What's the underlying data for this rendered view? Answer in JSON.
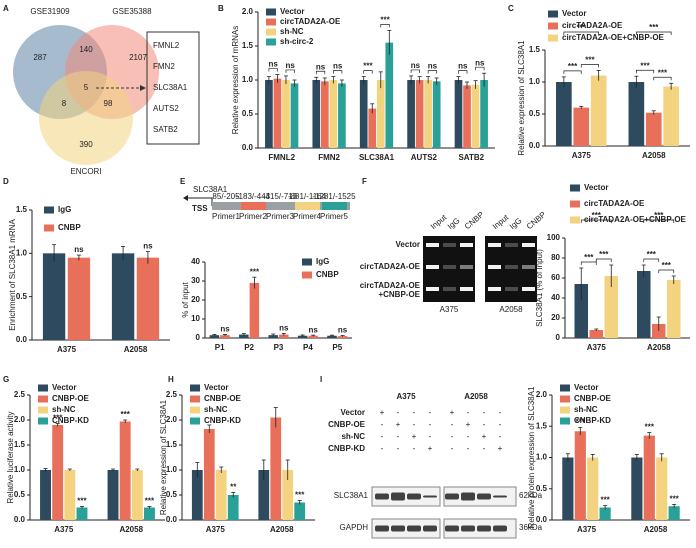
{
  "panel_labels": [
    "A",
    "B",
    "C",
    "D",
    "E",
    "F",
    "G",
    "H",
    "I"
  ],
  "venn": {
    "sets": [
      "GSE31909",
      "GSE35388",
      "ENCORI"
    ],
    "counts": [
      "287",
      "140",
      "2107",
      "5",
      "8",
      "98",
      "390"
    ],
    "genes": [
      "FMNL2",
      "FMN2",
      "SLC38A1",
      "AUTS2",
      "SATB2"
    ]
  },
  "promoter_diagram": {
    "gene": "SLC38A1",
    "tss": "TSS",
    "regions": [
      "85/-205",
      "-183/-443",
      "-415/-713",
      "-881/-1164",
      "-1281/-1525"
    ],
    "primers": [
      "Primer1",
      "Primer2",
      "Primer3",
      "Primer4",
      "Primer5"
    ]
  },
  "gel": {
    "lanes": [
      "Input",
      "IgG",
      "CNBP",
      "Input",
      "IgG",
      "CNBP"
    ],
    "rows": [
      [
        "Vector"
      ],
      [
        "circTADA2A-OE"
      ],
      [
        "circTADA2A-OE",
        "+CNBP-OE"
      ]
    ],
    "cells": [
      "A375",
      "A2058"
    ]
  },
  "blot": {
    "cells": [
      "A375",
      "A2058"
    ],
    "rows": [
      {
        "name": "Vector",
        "signs": [
          "+",
          "-",
          "-",
          "-",
          "+",
          "-",
          "-",
          "-"
        ]
      },
      {
        "name": "CNBP-OE",
        "signs": [
          "-",
          "+",
          "-",
          "-",
          "-",
          "+",
          "-",
          "-"
        ]
      },
      {
        "name": "sh-NC",
        "signs": [
          "-",
          "-",
          "+",
          "-",
          "-",
          "-",
          "+",
          "-"
        ]
      },
      {
        "name": "CNBP-KD",
        "signs": [
          "-",
          "-",
          "-",
          "+",
          "-",
          "-",
          "-",
          "+"
        ]
      }
    ],
    "proteins": [
      {
        "name": "SLC38A1",
        "size": "62kDa"
      },
      {
        "name": "GAPDH",
        "size": "36kDa"
      }
    ]
  },
  "chart_data": [
    {
      "type": "bar",
      "ylabel": "Relative expression of mRNAs",
      "brackets": true,
      "categories": [
        "FMNL2",
        "FMN2",
        "SLC38A1",
        "AUTS2",
        "SATB2"
      ],
      "ylim": [
        0,
        2
      ],
      "yticks": [
        {
          "value": 0,
          "label": "0.0"
        },
        {
          "value": 0.5,
          "label": "0.5"
        },
        {
          "value": 1,
          "label": "1.0"
        },
        {
          "value": 1.5,
          "label": "1.5"
        },
        {
          "value": 2,
          "label": "2.0"
        }
      ],
      "series": [
        {
          "name": "Vector",
          "color": "#2e4a5e",
          "values": [
            1.0,
            1.0,
            1.0,
            1.0,
            1.0
          ],
          "errors": [
            0.05,
            0.04,
            0.05,
            0.06,
            0.05
          ]
        },
        {
          "name": "circTADA2A-OE",
          "color": "#e8705a",
          "values": [
            1.02,
            0.98,
            0.58,
            1.0,
            0.92
          ],
          "errors": [
            0.06,
            0.05,
            0.07,
            0.05,
            0.05
          ],
          "significance": [
            "ns",
            "ns",
            "***",
            "ns",
            "ns"
          ]
        },
        {
          "name": "sh-NC",
          "color": "#f3d37f",
          "values": [
            1.0,
            1.0,
            1.0,
            1.0,
            0.93
          ],
          "errors": [
            0.06,
            0.05,
            0.12,
            0.05,
            0.06
          ]
        },
        {
          "name": "sh-circ-2",
          "color": "#2aa198",
          "values": [
            0.95,
            0.95,
            1.55,
            0.98,
            1.0
          ],
          "errors": [
            0.05,
            0.05,
            0.18,
            0.05,
            0.1
          ],
          "significance": [
            "ns",
            "ns",
            "***",
            "ns",
            "ns"
          ]
        }
      ]
    },
    {
      "type": "bar",
      "ylabel": "Relative expression of SLC38A1",
      "brackets": true,
      "categories": [
        "A375",
        "A2058"
      ],
      "ylim": [
        0,
        1.5
      ],
      "yticks": [
        {
          "value": 0,
          "label": "0.0"
        },
        {
          "value": 0.5,
          "label": "0.5"
        },
        {
          "value": 1,
          "label": "1.0"
        },
        {
          "value": 1.5,
          "label": "1.5"
        }
      ],
      "series": [
        {
          "name": "Vector",
          "color": "#2e4a5e",
          "values": [
            1.0,
            1.0
          ],
          "errors": [
            0.08,
            0.09
          ]
        },
        {
          "name": "circTADA2A-OE",
          "color": "#e8705a",
          "values": [
            0.6,
            0.52
          ],
          "errors": [
            0.02,
            0.03
          ],
          "significance": [
            "***",
            "***"
          ]
        },
        {
          "name": "circTADA2A-OE+CNBP-OE",
          "color": "#f3d37f",
          "values": [
            1.1,
            0.93
          ],
          "errors": [
            0.08,
            0.05
          ],
          "significance": [
            "***",
            "***"
          ],
          "significance_vs_control": [
            "***",
            "***"
          ]
        }
      ]
    },
    {
      "type": "bar",
      "ylabel": "Enrichment of SLC38A1 mRNA",
      "brackets": false,
      "categories": [
        "A375",
        "A2058"
      ],
      "ylim": [
        0,
        1.5
      ],
      "yticks": [
        {
          "value": 0,
          "label": "0.0"
        },
        {
          "value": 0.5,
          "label": "0.5"
        },
        {
          "value": 1,
          "label": "1.0"
        },
        {
          "value": 1.5,
          "label": "1.5"
        }
      ],
      "series": [
        {
          "name": "IgG",
          "color": "#2e4a5e",
          "values": [
            1.0,
            1.0
          ],
          "errors": [
            0.1,
            0.08
          ]
        },
        {
          "name": "CNBP",
          "color": "#e8705a",
          "values": [
            0.95,
            0.95
          ],
          "errors": [
            0.03,
            0.07
          ],
          "significance": [
            "ns",
            "ns"
          ]
        }
      ]
    },
    {
      "type": "bar",
      "ylabel": "% of input",
      "brackets": false,
      "categories": [
        "P1",
        "P2",
        "P3",
        "P4",
        "P5"
      ],
      "ylim": [
        0,
        40
      ],
      "yticks": [
        0,
        10,
        20,
        30,
        40
      ],
      "series": [
        {
          "name": "IgG",
          "color": "#2e4a5e",
          "values": [
            1.5,
            1.8,
            1.5,
            1.2,
            1.2
          ],
          "errors": [
            0.4,
            0.5,
            0.6,
            0.4,
            0.3
          ]
        },
        {
          "name": "CNBP",
          "color": "#e8705a",
          "values": [
            1.5,
            29,
            1.8,
            1.2,
            1.0
          ],
          "errors": [
            0.4,
            3,
            0.6,
            0.3,
            0.3
          ],
          "significance": [
            "ns",
            "***",
            "ns",
            "ns",
            "ns"
          ]
        }
      ]
    },
    {
      "type": "bar",
      "ylabel": "SLC38A1 (% of Input)",
      "brackets": true,
      "categories": [
        "A375",
        "A2058"
      ],
      "ylim": [
        0,
        100
      ],
      "yticks": [
        0,
        20,
        40,
        60,
        80,
        100
      ],
      "series": [
        {
          "name": "Vector",
          "color": "#2e4a5e",
          "values": [
            54,
            67
          ],
          "errors": [
            16,
            6
          ]
        },
        {
          "name": "circTADA2A-OE",
          "color": "#e8705a",
          "values": [
            8,
            14
          ],
          "errors": [
            1,
            7
          ],
          "significance": [
            "***",
            "***"
          ]
        },
        {
          "name": "circTADA2A-OE+CNBP-OE",
          "color": "#f3d37f",
          "values": [
            62,
            58
          ],
          "errors": [
            11,
            4
          ],
          "significance": [
            "***",
            "***"
          ],
          "significance_vs_control": [
            "***",
            "***"
          ]
        }
      ]
    },
    {
      "type": "bar",
      "ylabel": "Relative luciferase activity",
      "brackets": false,
      "categories": [
        "A375",
        "A2058"
      ],
      "ylim": [
        0,
        2.5
      ],
      "yticks": [
        {
          "value": 0,
          "label": "0.0"
        },
        {
          "value": 0.5,
          "label": "0.5"
        },
        {
          "value": 1,
          "label": "1.0"
        },
        {
          "value": 1.5,
          "label": "1.5"
        },
        {
          "value": 2,
          "label": "2.0"
        },
        {
          "value": 2.5,
          "label": "2.5"
        }
      ],
      "series": [
        {
          "name": "Vector",
          "color": "#2e4a5e",
          "values": [
            1.0,
            1.0
          ],
          "errors": [
            0.03,
            0.02
          ]
        },
        {
          "name": "CNBP-OE",
          "color": "#e8705a",
          "values": [
            1.9,
            1.97
          ],
          "errors": [
            0.03,
            0.03
          ],
          "significance": [
            "***",
            "***"
          ]
        },
        {
          "name": "sh-NC",
          "color": "#f3d37f",
          "values": [
            1.0,
            1.0
          ],
          "errors": [
            0.02,
            0.02
          ]
        },
        {
          "name": "CNBP-KD",
          "color": "#2aa198",
          "values": [
            0.25,
            0.25
          ],
          "errors": [
            0.02,
            0.02
          ],
          "significance": [
            "***",
            "***"
          ]
        }
      ]
    },
    {
      "type": "bar",
      "ylabel": "Relative expression of SLC38A1",
      "brackets": false,
      "categories": [
        "A375",
        "A2058"
      ],
      "ylim": [
        0,
        2.5
      ],
      "yticks": [
        {
          "value": 0,
          "label": "0.0"
        },
        {
          "value": 0.5,
          "label": "0.5"
        },
        {
          "value": 1,
          "label": "1.0"
        },
        {
          "value": 1.5,
          "label": "1.5"
        },
        {
          "value": 2,
          "label": "2.0"
        },
        {
          "value": 2.5,
          "label": "2.5"
        }
      ],
      "series": [
        {
          "name": "Vector",
          "color": "#2e4a5e",
          "values": [
            1.0,
            1.0
          ],
          "errors": [
            0.15,
            0.2
          ]
        },
        {
          "name": "CNBP-OE",
          "color": "#e8705a",
          "values": [
            1.82,
            2.05
          ],
          "errors": [
            0.08,
            0.2
          ]
        },
        {
          "name": "sh-NC",
          "color": "#f3d37f",
          "values": [
            1.0,
            1.0
          ],
          "errors": [
            0.06,
            0.2
          ]
        },
        {
          "name": "CNBP-KD",
          "color": "#2aa198",
          "values": [
            0.5,
            0.35
          ],
          "errors": [
            0.05,
            0.04
          ],
          "significance": [
            "**",
            "***"
          ]
        }
      ]
    },
    {
      "type": "bar",
      "ylabel": "Relative protein expression of SLC38A1",
      "brackets": false,
      "categories": [
        "A375",
        "A2058"
      ],
      "ylim": [
        0,
        2
      ],
      "yticks": [
        {
          "value": 0,
          "label": "0.0"
        },
        {
          "value": 0.5,
          "label": "0.5"
        },
        {
          "value": 1,
          "label": "1.0"
        },
        {
          "value": 1.5,
          "label": "1.5"
        },
        {
          "value": 2,
          "label": "2.0"
        }
      ],
      "series": [
        {
          "name": "Vector",
          "color": "#2e4a5e",
          "values": [
            1.0,
            1.0
          ],
          "errors": [
            0.06,
            0.05
          ]
        },
        {
          "name": "CNBP-OE",
          "color": "#e8705a",
          "values": [
            1.42,
            1.35
          ],
          "errors": [
            0.06,
            0.05
          ],
          "significance": [
            "***",
            "***"
          ]
        },
        {
          "name": "sh-NC",
          "color": "#f3d37f",
          "values": [
            1.0,
            1.0
          ],
          "errors": [
            0.05,
            0.06
          ]
        },
        {
          "name": "CNBP-KD",
          "color": "#2aa198",
          "values": [
            0.2,
            0.22
          ],
          "errors": [
            0.03,
            0.03
          ],
          "significance": [
            "***",
            "***"
          ]
        }
      ]
    }
  ]
}
